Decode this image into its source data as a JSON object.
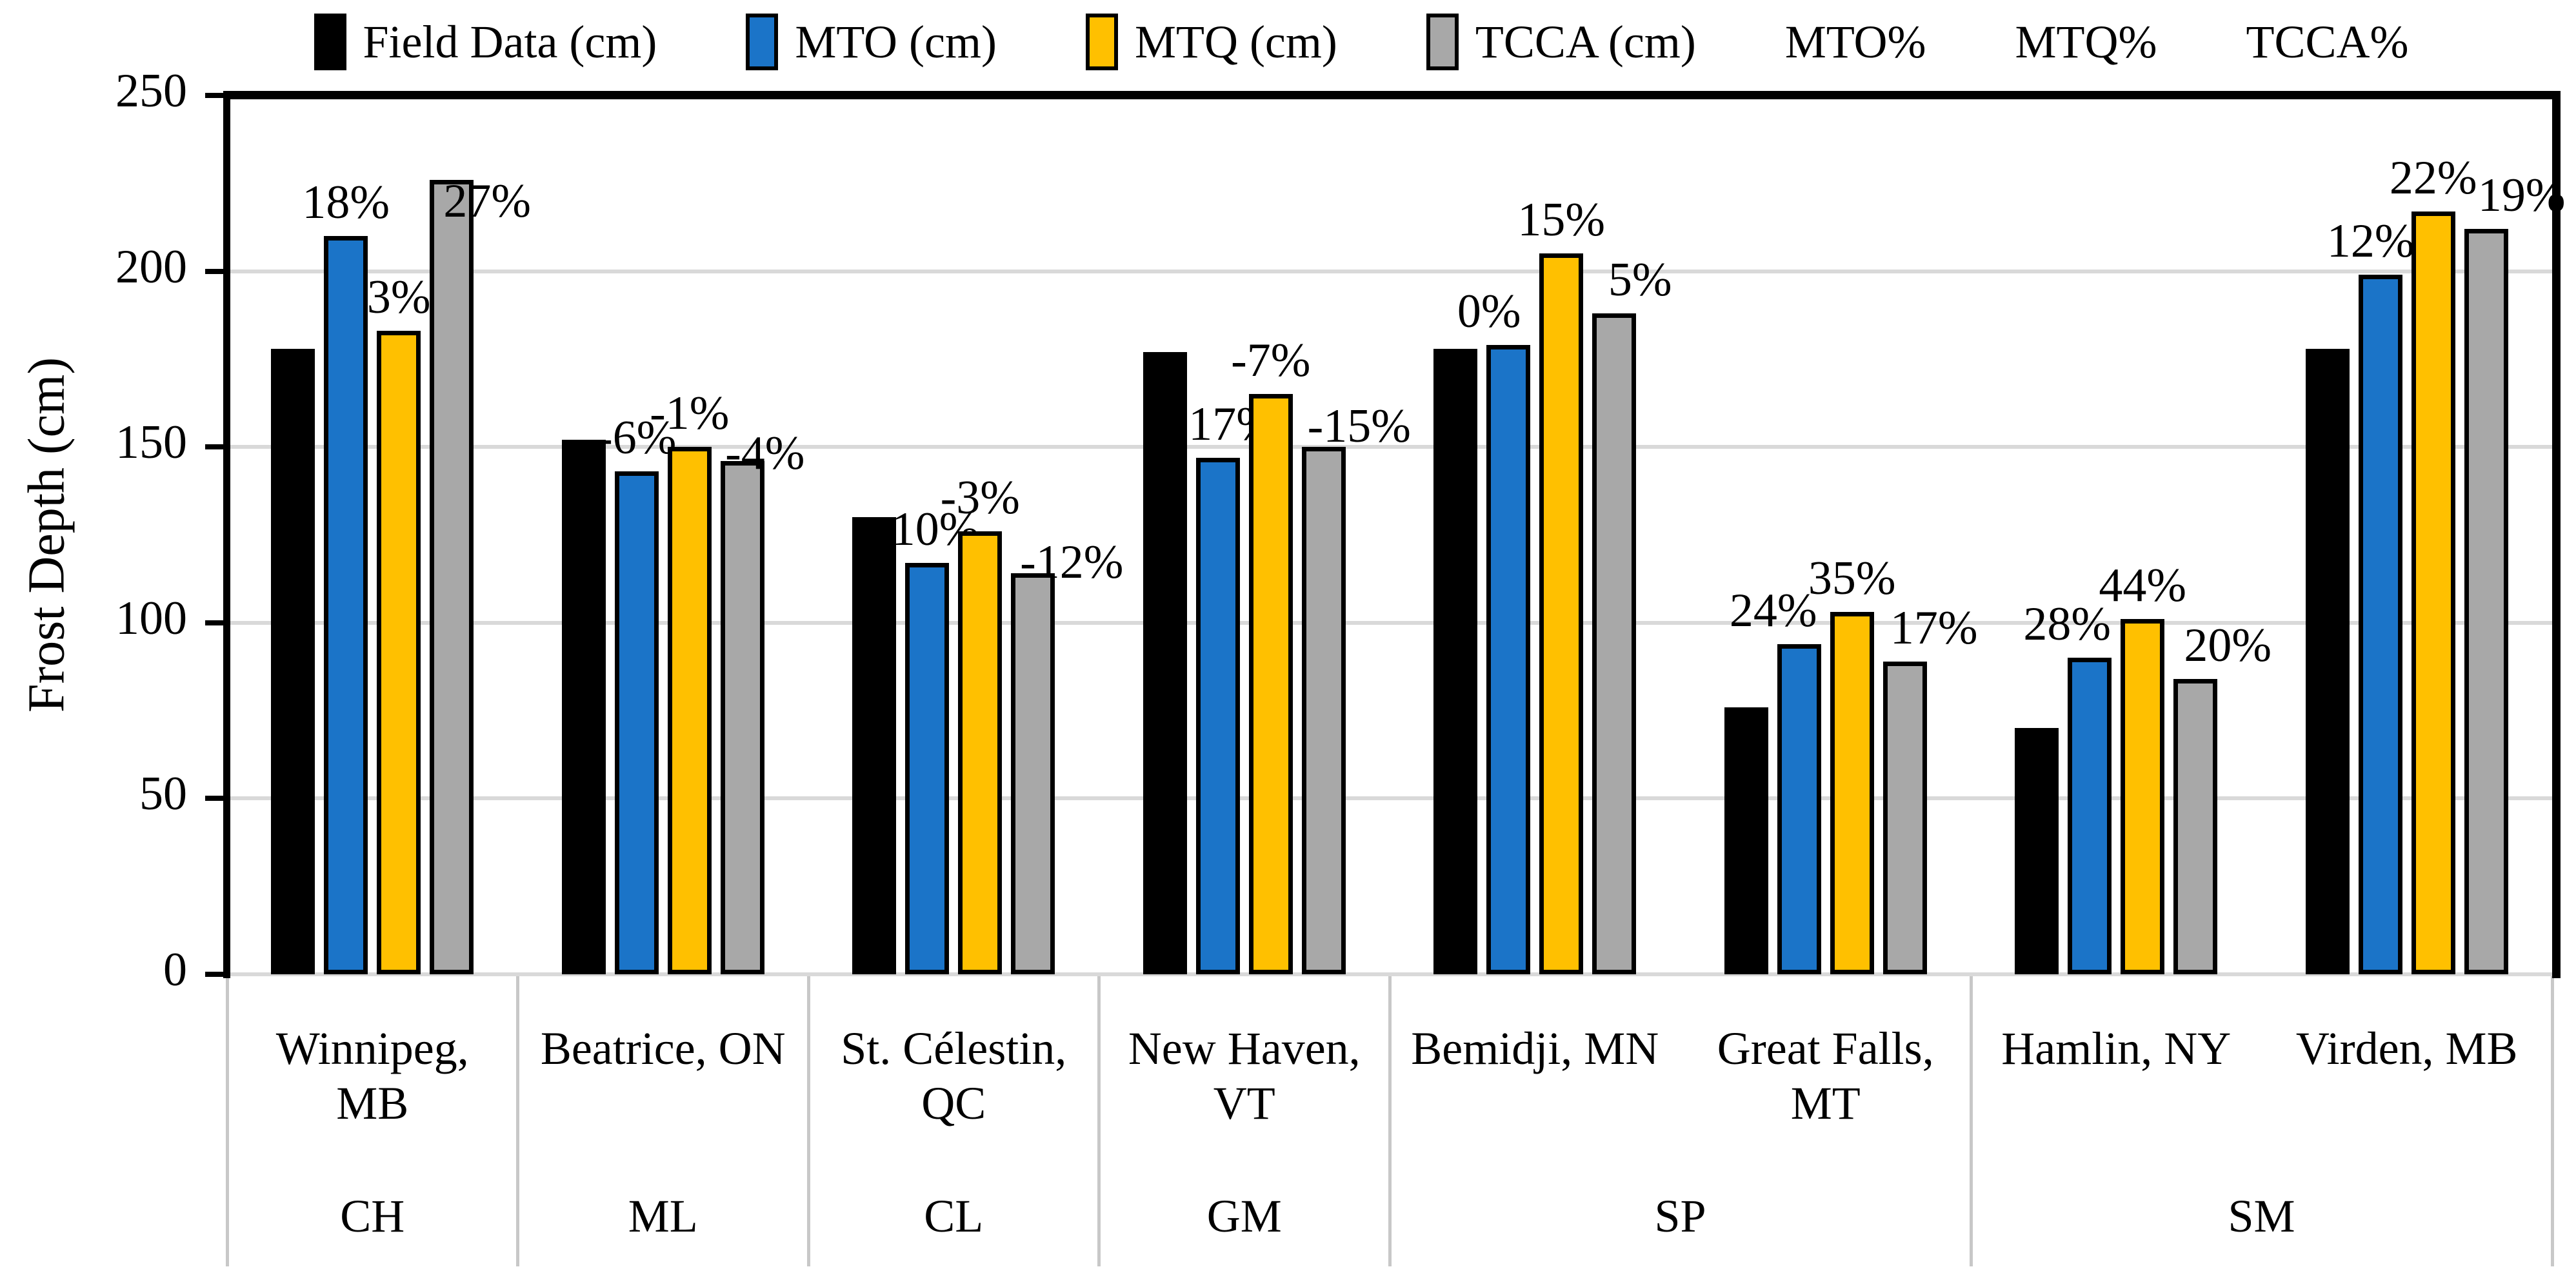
{
  "legend": {
    "items": [
      {
        "label": "Field Data (cm)",
        "swatch": "#000000"
      },
      {
        "label": "MTO (cm)",
        "swatch": "#1B74C8"
      },
      {
        "label": "MTQ (cm)",
        "swatch": "#FFC000"
      },
      {
        "label": "TCCA (cm)",
        "swatch": "#A8A8A8"
      },
      {
        "label": "MTO%",
        "swatch": null
      },
      {
        "label": "MTQ%",
        "swatch": null
      },
      {
        "label": "TCCA%",
        "swatch": null
      }
    ]
  },
  "chart_data": {
    "type": "bar",
    "title": "",
    "ylabel": "Frost Depth (cm)",
    "xlabel": "",
    "ylim": [
      0,
      250
    ],
    "y_ticks": [
      0,
      50,
      100,
      150,
      200,
      250
    ],
    "grid": "horizontal",
    "legend_position": "top",
    "categories": [
      {
        "lines": [
          "Winnipeg,",
          "MB"
        ],
        "group": "CH"
      },
      {
        "lines": [
          "Beatrice, ON"
        ],
        "group": "ML"
      },
      {
        "lines": [
          "St. Célestin,",
          "QC"
        ],
        "group": "CL"
      },
      {
        "lines": [
          "New Haven,",
          "VT"
        ],
        "group": "GM"
      },
      {
        "lines": [
          "Bemidji, MN"
        ],
        "group": "SP"
      },
      {
        "lines": [
          "Great Falls,",
          "MT"
        ],
        "group": "SP"
      },
      {
        "lines": [
          "Hamlin, NY"
        ],
        "group": "SM"
      },
      {
        "lines": [
          "Virden, MB"
        ],
        "group": "SM"
      }
    ],
    "group_spans": [
      {
        "code": "CH",
        "span": 1
      },
      {
        "code": "ML",
        "span": 1
      },
      {
        "code": "CL",
        "span": 1
      },
      {
        "code": "GM",
        "span": 1
      },
      {
        "code": "SP",
        "span": 2
      },
      {
        "code": "SM",
        "span": 2
      }
    ],
    "series": [
      {
        "name": "Field Data (cm)",
        "color": "#000000",
        "values": [
          178,
          152,
          130,
          177,
          178,
          76,
          70,
          178
        ],
        "labels": [
          "",
          "",
          "",
          "",
          "",
          "",
          "",
          ""
        ],
        "label_dx": [
          0,
          0,
          0,
          0,
          0,
          0,
          0,
          0
        ],
        "label_dy": [
          0,
          0,
          0,
          0,
          0,
          0,
          0,
          0
        ]
      },
      {
        "name": "MTO (cm)",
        "color": "#1B74C8",
        "values": [
          210,
          143,
          117,
          147,
          179,
          94,
          90,
          199
        ],
        "labels": [
          "18%",
          "-6%",
          "-10%",
          "-17%",
          "0%",
          "24%",
          "28%",
          "12%"
        ],
        "label_dx": [
          0,
          0,
          0,
          10,
          -30,
          -40,
          -35,
          -15
        ],
        "label_dy": [
          0,
          0,
          0,
          0,
          0,
          0,
          0,
          0
        ]
      },
      {
        "name": "MTQ (cm)",
        "color": "#FFC000",
        "values": [
          183,
          150,
          126,
          165,
          205,
          103,
          101,
          217
        ],
        "labels": [
          "3%",
          "-1%",
          "-3%",
          "-7%",
          "15%",
          "35%",
          "44%",
          "22%"
        ],
        "label_dx": [
          0,
          0,
          0,
          0,
          0,
          0,
          0,
          0
        ],
        "label_dy": [
          0,
          0,
          0,
          0,
          0,
          0,
          0,
          0
        ]
      },
      {
        "name": "TCCA (cm)",
        "color": "#A8A8A8",
        "values": [
          226,
          146,
          114,
          150,
          188,
          89,
          84,
          212
        ],
        "labels": [
          "27%",
          "-4%",
          "-12%",
          "-15%",
          "5%",
          "17%",
          "20%",
          "19%"
        ],
        "label_dx": [
          55,
          35,
          60,
          55,
          40,
          45,
          50,
          55
        ],
        "label_dy": [
          85,
          40,
          35,
          20,
          0,
          0,
          0,
          0
        ]
      }
    ],
    "colors": {
      "gridline": "#D9D9D9",
      "frame": "#000000",
      "divider": "#C8C8C8",
      "bar_border": "#000000"
    }
  }
}
